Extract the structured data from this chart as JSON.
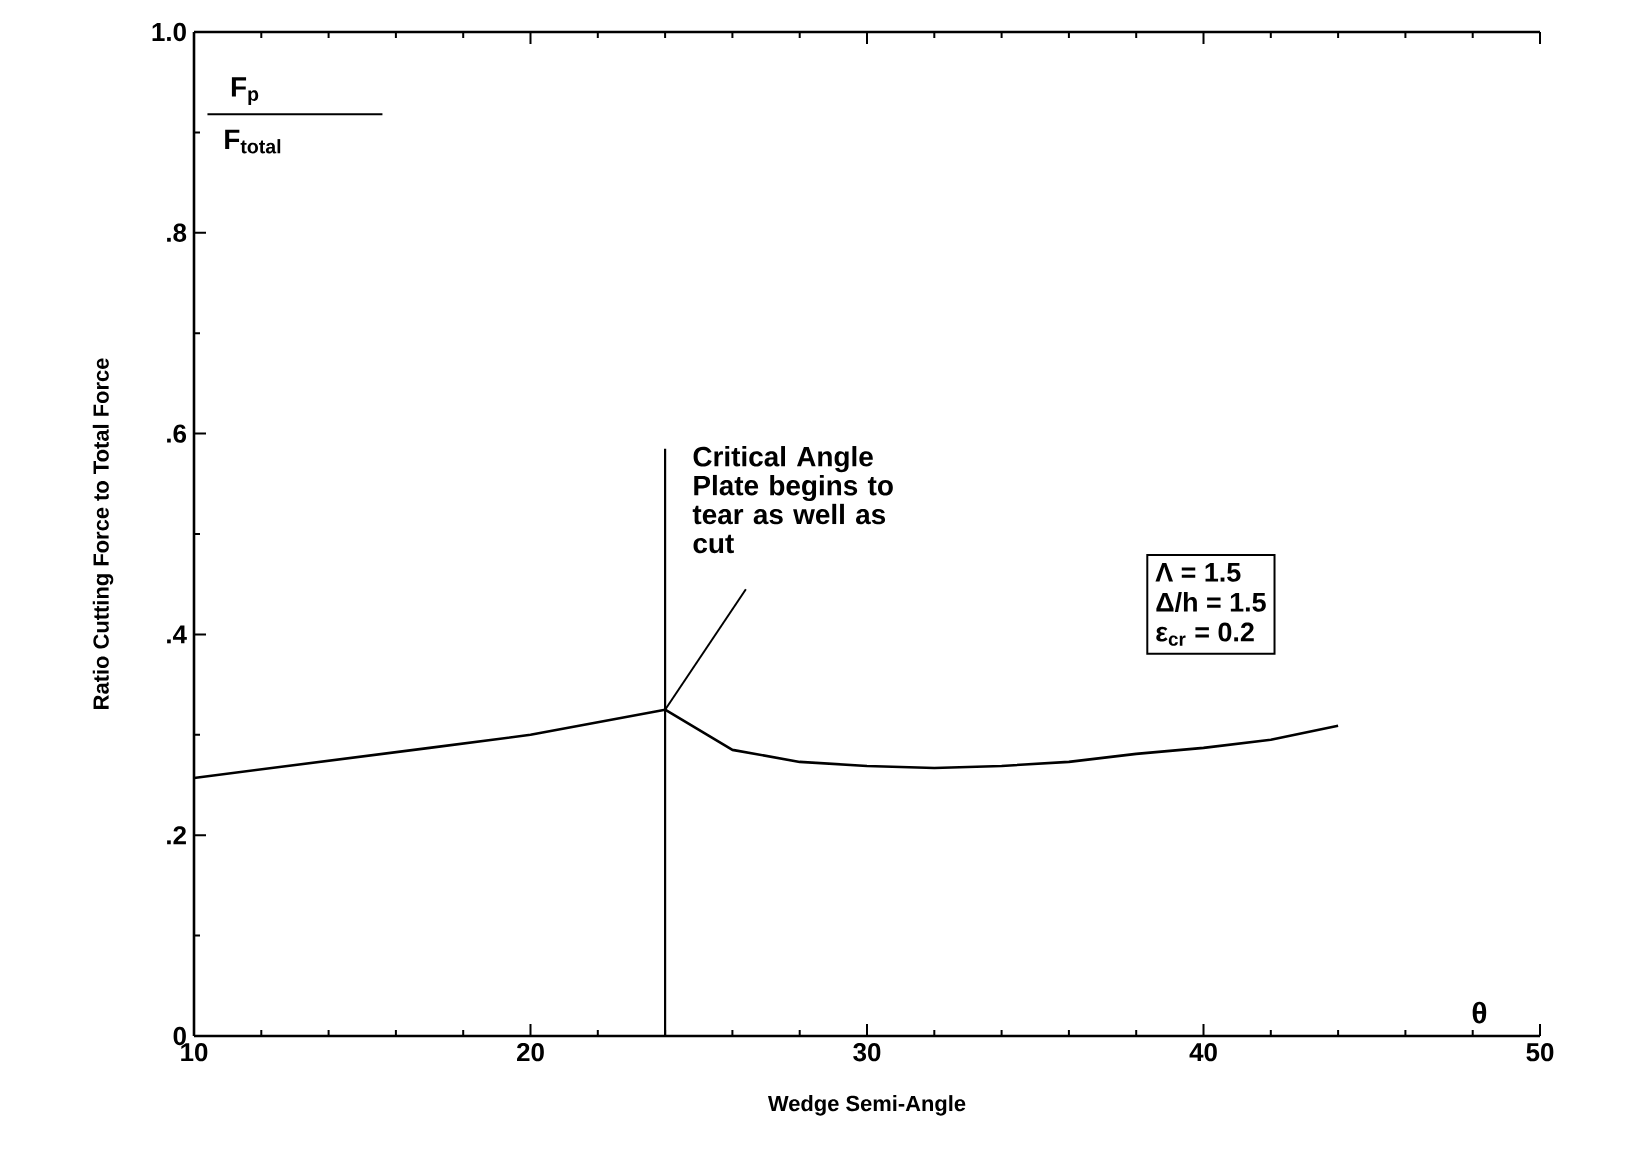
{
  "chart_data": {
    "type": "line",
    "xlabel": "Wedge Semi-Angle",
    "ylabel": "Ratio Cutting Force to Total Force",
    "x": [
      10,
      17,
      20,
      24,
      26,
      28,
      30,
      32,
      34,
      36,
      38,
      40,
      42,
      44
    ],
    "series": [
      {
        "color": "#000000",
        "line_style": "solid",
        "values": [
          0.257,
          0.287,
          0.3,
          0.325,
          0.285,
          0.273,
          0.269,
          0.267,
          0.269,
          0.273,
          0.281,
          0.287,
          0.295,
          0.309
        ]
      }
    ],
    "xlim": [
      10,
      50
    ],
    "xticks": [
      10,
      20,
      30,
      40,
      50
    ],
    "ylim": [
      0,
      1
    ],
    "yticks": [
      0,
      {
        "value": 0.2,
        "label": ".2"
      },
      {
        "value": 0.4,
        "label": ".4"
      },
      {
        "value": 0.6,
        "label": ".6"
      },
      {
        "value": 0.8,
        "label": ".8"
      },
      {
        "value": 1,
        "label": "1.0"
      }
    ],
    "grid": false,
    "ref_lines": [
      {
        "axis": "x",
        "value": 24
      }
    ],
    "annotations": [
      {
        "text": "Critical Angle Plate begins to tear as well as cut",
        "x": 24,
        "y": 0.325
      },
      "Λ = 1.5",
      "Δ/h = 1.5",
      "ε$_{cr}$ = 0.2",
      "θ",
      "F$_{p}$",
      "F$_{total}$"
    ]
  }
}
